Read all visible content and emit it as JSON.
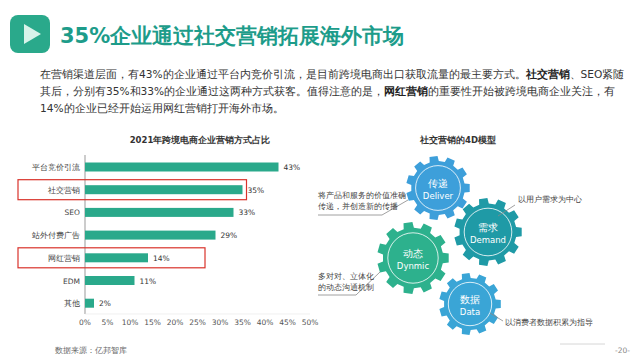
{
  "header": {
    "title": "35%企业通过社交营销拓展海外市场"
  },
  "paragraph": [
    {
      "text": "在营销渠道层面，有43%的企业通过平台内竞价引流，是目前跨境电商出口获取流量的最主要方式。",
      "bold": false
    },
    {
      "text": "社交营销",
      "bold": true
    },
    {
      "text": "、SEO紧随其后，分别有35%和33%的企业通过这两种方式获客。值得注意的是，",
      "bold": false
    },
    {
      "text": "网红营销",
      "bold": true
    },
    {
      "text": "的重要性开始被跨境电商企业关注，有14%的企业已经开始运用网红营销打开海外市场。",
      "bold": false
    }
  ],
  "chart_data": {
    "type": "bar",
    "orientation": "horizontal",
    "title": "2021年跨境电商企业营销方式占比",
    "categories": [
      "平台竞价引流",
      "社交营销",
      "SEO",
      "站外付费广告",
      "网红营销",
      "EDM",
      "其他"
    ],
    "values": [
      43,
      35,
      33,
      29,
      14,
      11,
      2
    ],
    "value_labels": [
      "43%",
      "35%",
      "33%",
      "29%",
      "14%",
      "11%",
      "2%"
    ],
    "data_labels": true,
    "color": "#2aa98b",
    "xlim": [
      0,
      50
    ],
    "xticks": [
      {
        "value": 0,
        "label": "0%"
      },
      {
        "value": 5,
        "label": "5%"
      },
      {
        "value": 10,
        "label": "10%"
      },
      {
        "value": 15,
        "label": "15%"
      },
      {
        "value": 20,
        "label": "20%"
      },
      {
        "value": 25,
        "label": "25%"
      },
      {
        "value": 30,
        "label": "30%"
      },
      {
        "value": 35,
        "label": "35%"
      },
      {
        "value": 40,
        "label": "40%"
      },
      {
        "value": 45,
        "label": "45%"
      },
      {
        "value": 50,
        "label": "50%"
      }
    ],
    "grid": false
  },
  "highlighted": [
    "社交营销",
    "网红营销"
  ],
  "diagram": {
    "title": "社交营销的4D模型",
    "nodes": [
      {
        "label": "传递",
        "sublabel": "Deliver",
        "color": "#3d9fda",
        "description": [
          "将产品和服务的价值准确",
          "传递，并创造新的传播"
        ]
      },
      {
        "label": "需求",
        "sublabel": "Demand",
        "color": "#1f9aa6",
        "description": [
          "以用户需求为中心"
        ]
      },
      {
        "label": "动态",
        "sublabel": "Dynmic",
        "color": "#2db18d",
        "description": [
          "多对对、立体化",
          "的动态沟通机制"
        ]
      },
      {
        "label": "数据",
        "sublabel": "Data",
        "color": "#3aa5d6",
        "description": [
          "以消费者数据积累为指导"
        ]
      }
    ]
  },
  "footer": {
    "source": "数据来源：亿邦智库",
    "page": "-20-"
  }
}
